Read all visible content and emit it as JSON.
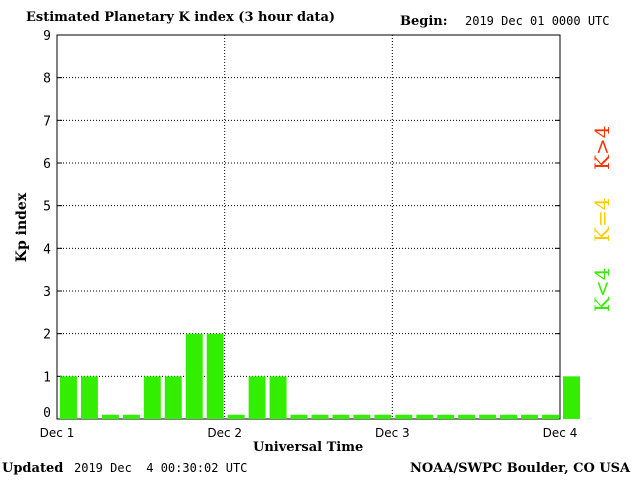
{
  "header": {
    "title": "Estimated Planetary K index (3 hour data)",
    "begin_label": "Begin:",
    "begin_value": "2019 Dec 01 0000 UTC"
  },
  "footer": {
    "updated_label": "Updated",
    "updated_value": "2019 Dec  4 00:30:02 UTC",
    "credit": "NOAA/SWPC Boulder, CO USA"
  },
  "legend": {
    "high": {
      "label": "K>4",
      "color": "#ff3300"
    },
    "equal": {
      "label": "K=4",
      "color": "#ffcc00"
    },
    "low": {
      "label": "K<4",
      "color": "#33ee00"
    }
  },
  "chart_data": {
    "type": "bar",
    "title": "Estimated Planetary K index (3 hour data)",
    "xlabel": "Universal Time",
    "ylabel": "Kp index",
    "ylim": [
      0,
      9
    ],
    "yticks": [
      0,
      1,
      2,
      3,
      4,
      5,
      6,
      7,
      8,
      9
    ],
    "xticks": [
      "Dec 1",
      "Dec 2",
      "Dec 3",
      "Dec 4"
    ],
    "grid": true,
    "bar_color": "#33ee00",
    "values": [
      1,
      1,
      0.1,
      0.1,
      1,
      1,
      2,
      2,
      0.1,
      1,
      1,
      0.1,
      0.1,
      0.1,
      0.1,
      0.1,
      0.1,
      0.1,
      0.1,
      0.1,
      0.1,
      0.1,
      0.1,
      0.1,
      1
    ]
  }
}
